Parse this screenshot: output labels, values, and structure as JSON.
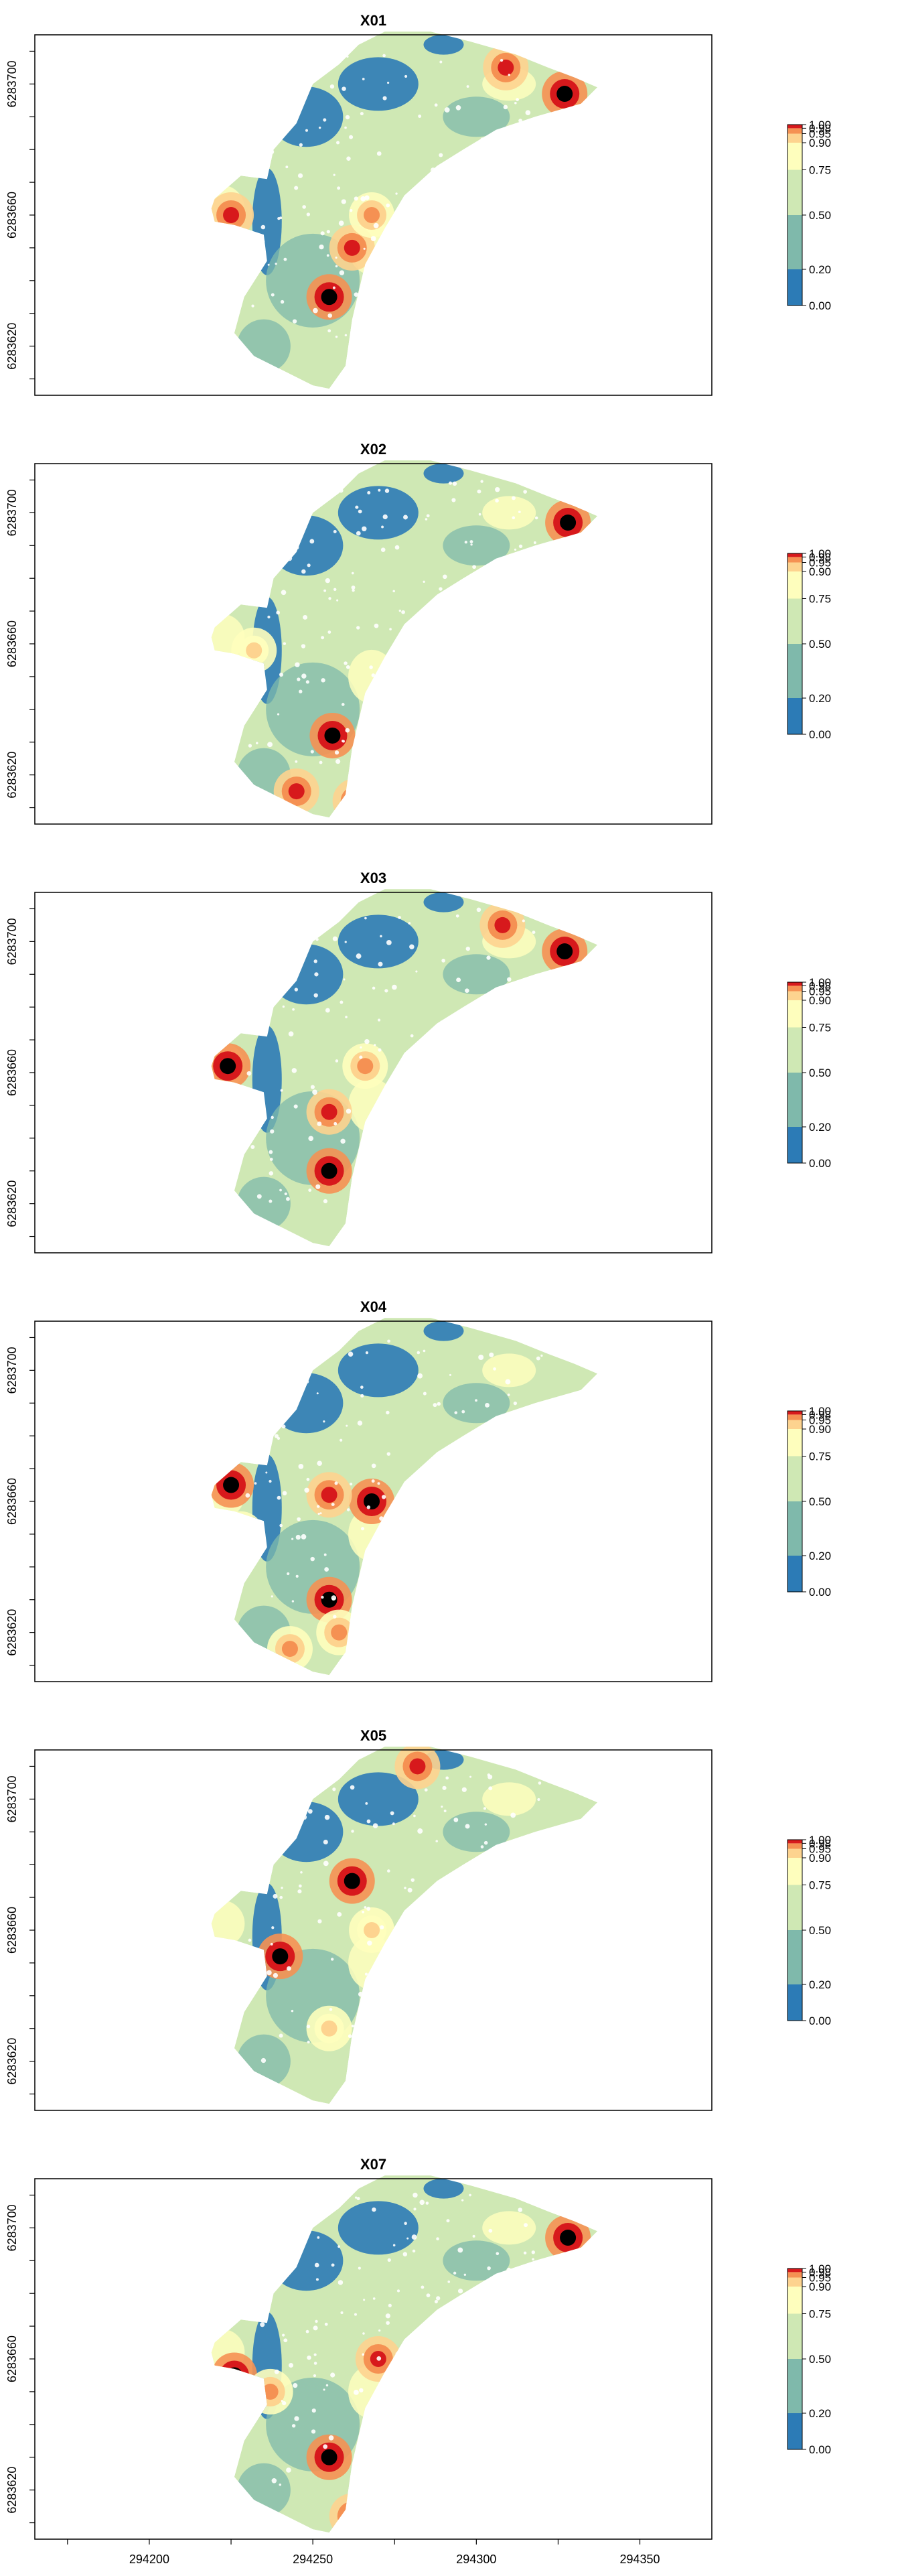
{
  "chart_data": [
    {
      "type": "heatmap",
      "title": "X01",
      "x_ticks": [
        "294200",
        "294250",
        "294300",
        "294350"
      ],
      "y_ticks": [
        "6283620",
        "6283660",
        "6283700"
      ],
      "legend": {
        "breaks": [
          "0.00",
          "0.20",
          "0.50",
          "0.75",
          "0.90",
          "0.95",
          "0.98",
          "1.00"
        ]
      },
      "blobs": [
        {
          "x": 294225,
          "y": 6283660,
          "level": 6
        },
        {
          "x": 294255,
          "y": 6283635,
          "level": 7
        },
        {
          "x": 294262,
          "y": 6283650,
          "level": 6
        },
        {
          "x": 294327,
          "y": 6283697,
          "level": 7
        },
        {
          "x": 294309,
          "y": 6283705,
          "level": 6
        },
        {
          "x": 294268,
          "y": 6283660,
          "level": 5
        }
      ]
    },
    {
      "type": "heatmap",
      "title": "X02",
      "x_ticks": [
        "294200",
        "294250",
        "294300",
        "294350"
      ],
      "y_ticks": [
        "6283620",
        "6283660",
        "6283700"
      ],
      "legend": {
        "breaks": [
          "0.00",
          "0.20",
          "0.50",
          "0.75",
          "0.90",
          "0.95",
          "0.98",
          "1.00"
        ]
      },
      "blobs": [
        {
          "x": 294256,
          "y": 6283632,
          "level": 7
        },
        {
          "x": 294245,
          "y": 6283615,
          "level": 6
        },
        {
          "x": 294263,
          "y": 6283612,
          "level": 6
        },
        {
          "x": 294328,
          "y": 6283697,
          "level": 7
        },
        {
          "x": 294232,
          "y": 6283658,
          "level": 4
        }
      ]
    },
    {
      "type": "heatmap",
      "title": "X03",
      "x_ticks": [
        "294200",
        "294250",
        "294300",
        "294350"
      ],
      "y_ticks": [
        "6283620",
        "6283660",
        "6283700"
      ],
      "legend": {
        "breaks": [
          "0.00",
          "0.20",
          "0.50",
          "0.75",
          "0.90",
          "0.95",
          "0.98",
          "1.00"
        ]
      },
      "blobs": [
        {
          "x": 294224,
          "y": 6283662,
          "level": 7
        },
        {
          "x": 294255,
          "y": 6283630,
          "level": 7
        },
        {
          "x": 294255,
          "y": 6283648,
          "level": 6
        },
        {
          "x": 294327,
          "y": 6283697,
          "level": 7
        },
        {
          "x": 294308,
          "y": 6283705,
          "level": 6
        },
        {
          "x": 294266,
          "y": 6283662,
          "level": 5
        }
      ]
    },
    {
      "type": "heatmap",
      "title": "X04",
      "x_ticks": [
        "294200",
        "294250",
        "294300",
        "294350"
      ],
      "y_ticks": [
        "6283620",
        "6283660",
        "6283700"
      ],
      "legend": {
        "breaks": [
          "0.00",
          "0.20",
          "0.50",
          "0.75",
          "0.90",
          "0.95",
          "0.98",
          "1.00"
        ]
      },
      "blobs": [
        {
          "x": 294225,
          "y": 6283665,
          "level": 7
        },
        {
          "x": 294268,
          "y": 6283660,
          "level": 7
        },
        {
          "x": 294255,
          "y": 6283630,
          "level": 7
        },
        {
          "x": 294255,
          "y": 6283662,
          "level": 6
        },
        {
          "x": 294243,
          "y": 6283615,
          "level": 5
        },
        {
          "x": 294258,
          "y": 6283620,
          "level": 5
        },
        {
          "x": 294228,
          "y": 6283650,
          "level": 5
        }
      ]
    },
    {
      "type": "heatmap",
      "title": "X05",
      "x_ticks": [
        "294200",
        "294250",
        "294300",
        "294350"
      ],
      "y_ticks": [
        "6283620",
        "6283660",
        "6283700"
      ],
      "legend": {
        "breaks": [
          "0.00",
          "0.20",
          "0.50",
          "0.75",
          "0.90",
          "0.95",
          "0.98",
          "1.00"
        ]
      },
      "blobs": [
        {
          "x": 294262,
          "y": 6283675,
          "level": 7
        },
        {
          "x": 294240,
          "y": 6283652,
          "level": 7
        },
        {
          "x": 294282,
          "y": 6283710,
          "level": 6
        },
        {
          "x": 294268,
          "y": 6283660,
          "level": 4
        },
        {
          "x": 294255,
          "y": 6283630,
          "level": 4
        }
      ]
    },
    {
      "type": "heatmap",
      "title": "X07",
      "x_ticks": [
        "294200",
        "294250",
        "294300",
        "294350"
      ],
      "y_ticks": [
        "6283620",
        "6283660",
        "6283700"
      ],
      "legend": {
        "breaks": [
          "0.00",
          "0.20",
          "0.50",
          "0.75",
          "0.90",
          "0.95",
          "0.98",
          "1.00"
        ]
      },
      "blobs": [
        {
          "x": 294226,
          "y": 6283655,
          "level": 7
        },
        {
          "x": 294255,
          "y": 6283630,
          "level": 7
        },
        {
          "x": 294328,
          "y": 6283697,
          "level": 7
        },
        {
          "x": 294262,
          "y": 6283612,
          "level": 6
        },
        {
          "x": 294270,
          "y": 6283660,
          "level": 6
        },
        {
          "x": 294237,
          "y": 6283650,
          "level": 5
        }
      ]
    }
  ],
  "shared": {
    "palette": [
      "#2c7bb6",
      "#7fb9ab",
      "#cfe8b4",
      "#fefebd",
      "#fdd38f",
      "#f59153",
      "#d7191c"
    ],
    "x_axis_ticks": [
      "294200",
      "294250",
      "294300",
      "294350"
    ],
    "xlim": [
      294165,
      294372
    ],
    "ylim": [
      6283605,
      6283715
    ]
  }
}
